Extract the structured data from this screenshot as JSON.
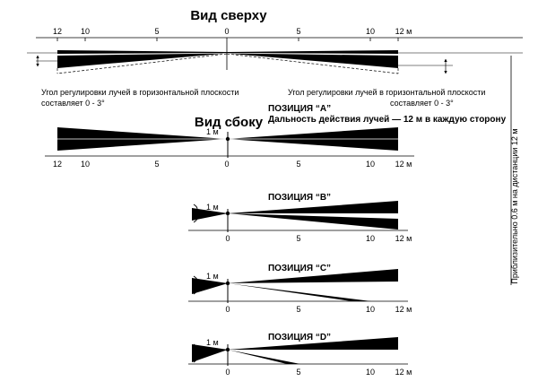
{
  "top_view": {
    "title": "Вид сверху",
    "scale_labels": [
      "12",
      "10",
      "5",
      "0",
      "5",
      "10",
      "12 м"
    ],
    "note_left_line1": "Угол регулировки лучей в горизонтальной плоскости",
    "note_left_line2": "составляет 0 - 3°",
    "note_right_line1": "Угол регулировки лучей в горизонтальной плоскости",
    "note_right_line2": "составляет 0 - 3°"
  },
  "side_view": {
    "title": "Вид сбоку",
    "scale_labels": [
      "12",
      "10",
      "5",
      "0",
      "5",
      "10",
      "12 м"
    ],
    "height_label": "1 м"
  },
  "positions": [
    {
      "id": "A",
      "title": "ПОЗИЦИЯ “A”",
      "subtitle": "Дальность действия лучей — 12 м в каждую сторону"
    },
    {
      "id": "B",
      "title": "ПОЗИЦИЯ “B”",
      "height_label": "1 м",
      "scale_labels": [
        "0",
        "5",
        "10",
        "12 м"
      ]
    },
    {
      "id": "C",
      "title": "ПОЗИЦИЯ “C”",
      "height_label": "1 м",
      "scale_labels": [
        "0",
        "5",
        "10",
        "12 м"
      ]
    },
    {
      "id": "D",
      "title": "ПОЗИЦИЯ “D”",
      "height_label": "1 м",
      "scale_labels": [
        "0",
        "5",
        "10",
        "12 м"
      ]
    }
  ],
  "vertical_note": "Приблизительно 0.6 м на дистанции 12 м"
}
